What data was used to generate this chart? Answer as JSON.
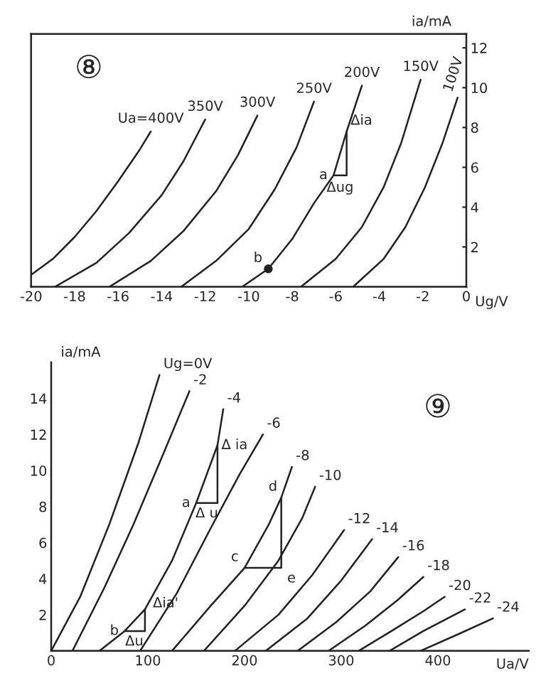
{
  "chart_data": [
    {
      "type": "line",
      "xlabel": "Ug/V",
      "ylabel": "ia/mA",
      "xlim": [
        -20,
        0
      ],
      "ylim": [
        0,
        12.7
      ],
      "xticks": [
        -20,
        -18,
        -16,
        -14,
        -12,
        -10,
        -8,
        -6,
        -4,
        -2,
        0
      ],
      "yticks": [
        2,
        4,
        6,
        8,
        10,
        12
      ],
      "series": [
        {
          "name": "Ua=400V",
          "color": "#222222",
          "x": [
            -20,
            -19,
            -18,
            -17,
            -16,
            -15,
            -14.5
          ],
          "values": [
            0.6,
            1.4,
            2.5,
            3.8,
            5.3,
            6.9,
            7.8
          ]
        },
        {
          "name": "350V",
          "color": "#222222",
          "x": [
            -18.9,
            -17,
            -15.5,
            -14,
            -13,
            -12
          ],
          "values": [
            0,
            1.2,
            2.7,
            4.6,
            6.3,
            8.4
          ]
        },
        {
          "name": "300V",
          "color": "#222222",
          "x": [
            -16.4,
            -14.5,
            -13,
            -11.5,
            -10.5,
            -9.6
          ],
          "values": [
            0,
            1.3,
            2.8,
            4.8,
            6.6,
            8.6
          ]
        },
        {
          "name": "250V",
          "color": "#222222",
          "x": [
            -13.1,
            -11.5,
            -10,
            -8.8,
            -7.8,
            -7
          ],
          "values": [
            0,
            1.3,
            2.9,
            4.9,
            7,
            9.3
          ]
        },
        {
          "name": "200V",
          "color": "#222222",
          "x": [
            -10.3,
            -9.1,
            -8,
            -7,
            -6.1,
            -5.5,
            -4.8
          ],
          "values": [
            0,
            0.9,
            2.4,
            4.2,
            5.6,
            7.8,
            10.1
          ]
        },
        {
          "name": "150V",
          "color": "#222222",
          "x": [
            -7.6,
            -6,
            -4.8,
            -3.8,
            -3,
            -2.1
          ],
          "values": [
            0,
            1.4,
            3,
            5,
            7.2,
            10.4
          ]
        },
        {
          "name": "100V",
          "color": "#222222",
          "x": [
            -5.2,
            -3.8,
            -2.8,
            -1.9,
            -1.1,
            -0.4
          ],
          "values": [
            0,
            1.4,
            3,
            5,
            7.2,
            9.5
          ]
        },
        {
          "color": "#222222",
          "x": [
            -6.1,
            -5.5,
            -5.5
          ],
          "values": [
            5.6,
            5.6,
            7.8
          ]
        },
        {
          "type": "scatter",
          "marker": "circle",
          "color": "#222222",
          "x": [
            -9.1
          ],
          "values": [
            0.9
          ]
        }
      ],
      "annotations": [
        "⑧",
        {
          "text": "Δia",
          "x": -5.5,
          "y": 7.8
        },
        {
          "text": "a",
          "x": -6.1,
          "y": 5.6
        },
        {
          "text": "Δug",
          "x": -5.8,
          "y": 5.6
        },
        {
          "text": "b",
          "x": -9.1,
          "y": 0.9
        }
      ]
    },
    {
      "type": "line",
      "xlabel": "Ua/V",
      "ylabel": "ia/mA",
      "xlim": [
        0,
        494
      ],
      "ylim": [
        0,
        16
      ],
      "xticks": [
        0,
        100,
        200,
        300,
        400
      ],
      "yticks": [
        2,
        4,
        6,
        8,
        10,
        12,
        14
      ],
      "series": [
        {
          "name": "Ug=0V",
          "color": "#222222",
          "x": [
            0,
            30,
            60,
            90,
            112
          ],
          "values": [
            0,
            3,
            7,
            11.5,
            15.3
          ]
        },
        {
          "name": "-2",
          "color": "#222222",
          "x": [
            22,
            55,
            85,
            115,
            143
          ],
          "values": [
            0,
            3.5,
            7,
            10.8,
            14.4
          ]
        },
        {
          "name": "-4",
          "color": "#222222",
          "x": [
            50,
            76,
            97,
            125,
            150,
            172,
            178
          ],
          "values": [
            0,
            1.1,
            2.3,
            5,
            8.2,
            11.4,
            13.4
          ]
        },
        {
          "name": "-6",
          "color": "#222222",
          "x": [
            92,
            130,
            165,
            195,
            219
          ],
          "values": [
            0,
            3.2,
            6.8,
            9.8,
            12
          ]
        },
        {
          "name": "-8",
          "color": "#222222",
          "x": [
            125,
            165,
            200,
            225,
            238,
            249
          ],
          "values": [
            0,
            2.5,
            4.6,
            7,
            8.5,
            10.2
          ]
        },
        {
          "name": "-10",
          "color": "#222222",
          "x": [
            158,
            200,
            235,
            260,
            273
          ],
          "values": [
            0,
            2.5,
            5,
            7.4,
            9.1
          ]
        },
        {
          "name": "-12",
          "color": "#222222",
          "x": [
            190,
            235,
            270,
            303
          ],
          "values": [
            0,
            2,
            4.2,
            6.7
          ]
        },
        {
          "name": "-14",
          "color": "#222222",
          "x": [
            222,
            265,
            300,
            332
          ],
          "values": [
            0,
            1.8,
            3.9,
            6.2
          ]
        },
        {
          "name": "-16",
          "color": "#222222",
          "x": [
            255,
            295,
            330,
            359
          ],
          "values": [
            0,
            1.6,
            3.3,
            5.2
          ]
        },
        {
          "name": "-18",
          "color": "#222222",
          "x": [
            287,
            325,
            358,
            385
          ],
          "values": [
            0,
            1.4,
            2.8,
            4.1
          ]
        },
        {
          "name": "-20",
          "color": "#222222",
          "x": [
            318,
            355,
            385,
            407
          ],
          "values": [
            0,
            1.2,
            2.2,
            3
          ]
        },
        {
          "name": "-22",
          "color": "#222222",
          "x": [
            350,
            385,
            428
          ],
          "values": [
            0,
            1.1,
            2.3
          ]
        },
        {
          "name": "-24",
          "color": "#222222",
          "x": [
            382,
            420,
            457
          ],
          "values": [
            0,
            0.9,
            1.8
          ]
        },
        {
          "color": "#222222",
          "x": [
            150,
            172,
            172
          ],
          "values": [
            8.2,
            8.2,
            11.4
          ]
        },
        {
          "color": "#222222",
          "x": [
            200,
            238,
            238
          ],
          "values": [
            4.6,
            4.6,
            8.5
          ]
        },
        {
          "color": "#222222",
          "x": [
            76,
            97,
            97
          ],
          "values": [
            1.1,
            1.1,
            2.3
          ]
        }
      ],
      "annotations": [
        "⑨",
        {
          "text": "Δ ia",
          "x": 172,
          "y": 11.4
        },
        {
          "text": "a",
          "x": 150,
          "y": 8.2
        },
        {
          "text": "Δ u",
          "x": 161,
          "y": 8.2
        },
        {
          "text": "d",
          "x": 238,
          "y": 8.5
        },
        {
          "text": "c",
          "x": 200,
          "y": 4.6
        },
        {
          "text": "e",
          "x": 238,
          "y": 4.6
        },
        {
          "text": "Δia'",
          "x": 97,
          "y": 2.3
        },
        {
          "text": "b",
          "x": 76,
          "y": 1.1
        },
        {
          "text": "Δu",
          "x": 86,
          "y": 1.1
        }
      ]
    }
  ]
}
